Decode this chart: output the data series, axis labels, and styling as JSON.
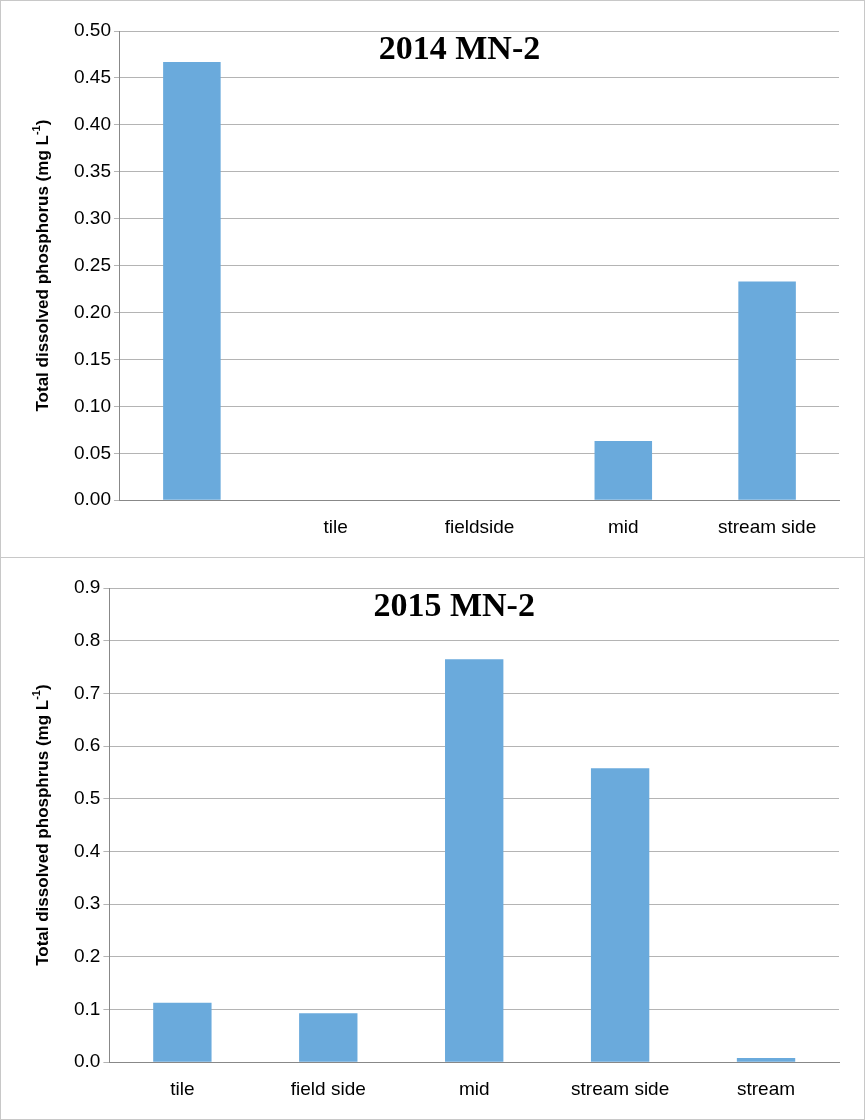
{
  "chart_data": [
    {
      "type": "bar",
      "title": "2014 MN-2",
      "ylabel": "Total dissolved phosphorus (mg L$^{-1}$)",
      "categories": [
        null,
        "tile",
        "fieldside",
        "mid",
        "stream side"
      ],
      "values": [
        0.467,
        null,
        null,
        0.063,
        0.233
      ],
      "color": "#6aaadc",
      "ylim": [
        0,
        0.5
      ],
      "yticks": [
        {
          "value": 0,
          "label": "0.00"
        },
        {
          "value": 0.05,
          "label": "0.05"
        },
        {
          "value": 0.1,
          "label": "0.10"
        },
        {
          "value": 0.15,
          "label": "0.15"
        },
        {
          "value": 0.2,
          "label": "0.20"
        },
        {
          "value": 0.25,
          "label": "0.25"
        },
        {
          "value": 0.3,
          "label": "0.30"
        },
        {
          "value": 0.35,
          "label": "0.35"
        },
        {
          "value": 0.4,
          "label": "0.40"
        },
        {
          "value": 0.45,
          "label": "0.45"
        },
        {
          "value": 0.5,
          "label": "0.50"
        }
      ],
      "grid": "y"
    },
    {
      "type": "bar",
      "title": "2015 MN-2",
      "ylabel": "Total dissolved phosphrus (mg L$^{-1}$)",
      "categories": [
        "tile",
        "field side",
        "mid",
        "stream side",
        "stream"
      ],
      "values": [
        0.113,
        0.093,
        0.765,
        0.558,
        0.008
      ],
      "color": "#6aaadc",
      "ylim": [
        0,
        0.9
      ],
      "yticks": [
        {
          "value": 0,
          "label": "0.0"
        },
        {
          "value": 0.1,
          "label": "0.1"
        },
        {
          "value": 0.2,
          "label": "0.2"
        },
        {
          "value": 0.3,
          "label": "0.3"
        },
        {
          "value": 0.4,
          "label": "0.4"
        },
        {
          "value": 0.5,
          "label": "0.5"
        },
        {
          "value": 0.6,
          "label": "0.6"
        },
        {
          "value": 0.7,
          "label": "0.7"
        },
        {
          "value": 0.8,
          "label": "0.8"
        },
        {
          "value": 0.9,
          "label": "0.9"
        }
      ],
      "grid": "y"
    }
  ]
}
